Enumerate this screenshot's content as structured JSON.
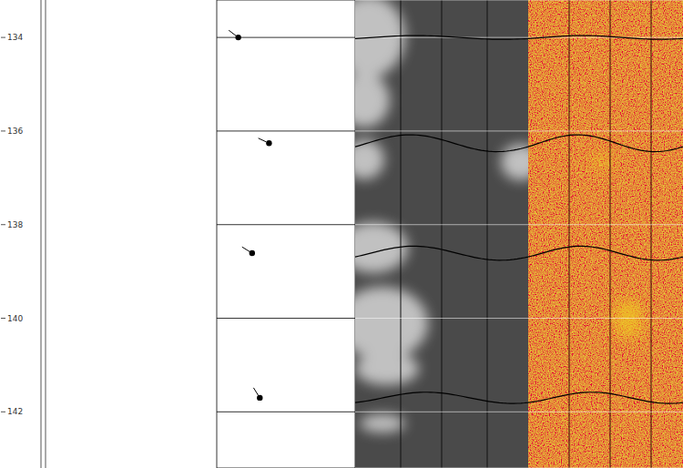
{
  "chart_data": {
    "type": "tadpole",
    "ylim": [
      133.2,
      143.2
    ],
    "yticks": [
      134,
      136,
      138,
      140,
      142
    ],
    "xlim": [
      0,
      90
    ],
    "xticks": [
      0,
      10,
      20,
      30,
      40,
      50,
      60,
      70,
      80,
      90
    ],
    "tick_labels": "y",
    "grid": true,
    "marker": "tadpole",
    "color": "#000000",
    "features": [
      {
        "depth": 134.0,
        "dip": 14,
        "azimuth": 307,
        "amplitude": 0.04
      },
      {
        "depth": 136.26,
        "dip": 34,
        "azimuth": 295,
        "amplitude": 0.18
      },
      {
        "depth": 138.61,
        "dip": 23,
        "azimuth": 302,
        "amplitude": 0.15
      },
      {
        "depth": 141.7,
        "dip": 28,
        "azimuth": 328,
        "amplitude": 0.12
      }
    ]
  }
}
